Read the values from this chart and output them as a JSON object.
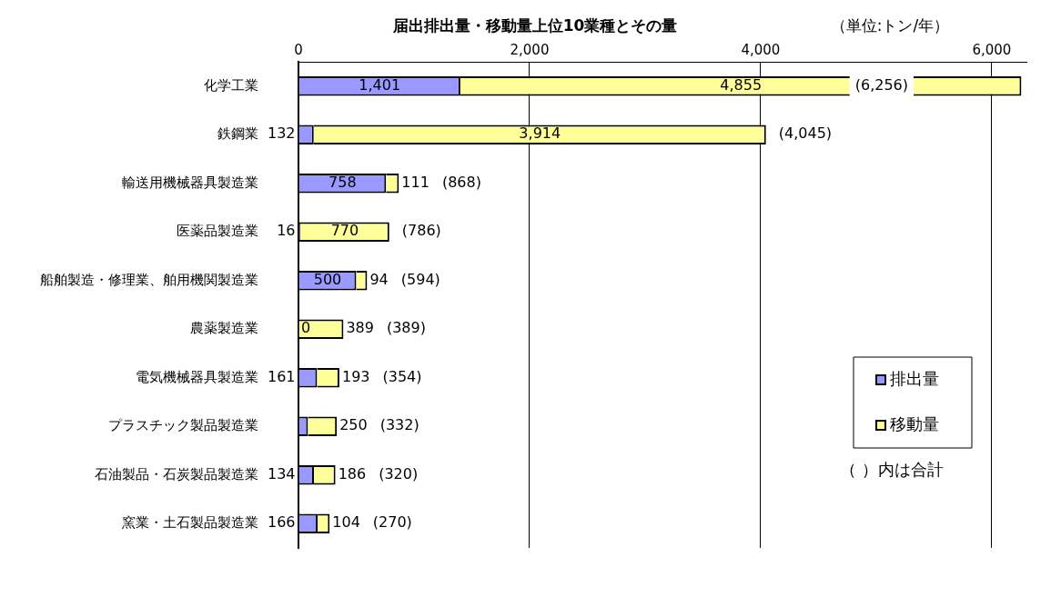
{
  "chart_data": {
    "type": "bar",
    "orientation": "horizontal",
    "stacked": true,
    "title": "届出排出量・移動量上位10業種とその量",
    "subtitle": "（単位:トン/年）",
    "categories": [
      "化学工業",
      "鉄鋼業",
      "輸送用機械器具製造業",
      "医薬品製造業",
      "船舶製造・修理業、舶用機関製造業",
      "農薬製造業",
      "電気機械器具製造業",
      "プラスチック製品製造業",
      "石油製品・石炭製品製造業",
      "窯業・土石製品製造業"
    ],
    "series": [
      {
        "name": "排出量",
        "color": "#9999ff",
        "values": [
          1401,
          132,
          758,
          16,
          500,
          0,
          161,
          82,
          134,
          166
        ],
        "value_labels": [
          "1,401",
          "132",
          "758",
          "16",
          "500",
          "0",
          "161",
          null,
          "134",
          "166"
        ]
      },
      {
        "name": "移動量",
        "color": "#ffff99",
        "values": [
          4855,
          3914,
          111,
          770,
          94,
          389,
          193,
          250,
          186,
          104
        ],
        "value_labels": [
          "4,855",
          "3,914",
          "111",
          "770",
          "94",
          "389",
          "193",
          "250",
          "186",
          "104"
        ]
      }
    ],
    "totals": [
      "(6,256)",
      "(4,045)",
      "(868)",
      "(786)",
      "(594)",
      "(389)",
      "(354)",
      "(332)",
      "(320)",
      "(270)"
    ],
    "xlim": [
      0,
      6300
    ],
    "xticks": [
      {
        "value": 0,
        "label": "0"
      },
      {
        "value": 2000,
        "label": "2,000"
      },
      {
        "value": 4000,
        "label": "4,000"
      },
      {
        "value": 6000,
        "label": "6,000"
      }
    ],
    "grid": "x",
    "legend": "bottom right",
    "annotations": [
      "（ ）内は合計"
    ]
  }
}
